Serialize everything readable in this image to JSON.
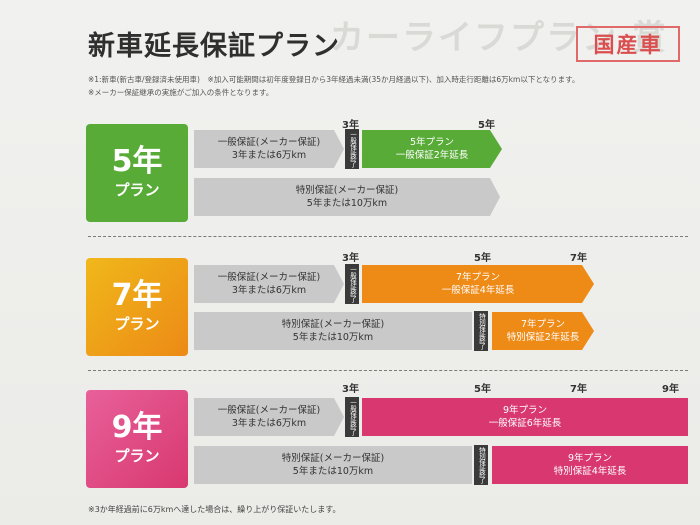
{
  "header": {
    "title": "新車延長保証プラン",
    "badge": "国産車",
    "ghost_text": "カーライフプラン 賞"
  },
  "notes": {
    "note1": "※1:新車(新古車/登録済未使用車)　※加入可能期間は初年度登録日から3年経過未満(35か月経過以下)、加入時走行距離は6万km以下となります。",
    "note2": "※メーカー保証継承の実施がご加入の条件となります。"
  },
  "colors": {
    "green": "#59ab38",
    "orange": "#ee8a16",
    "pink": "#d8386f",
    "gray": "#c9c9c9"
  },
  "plans": [
    {
      "num": "5年",
      "name": "プラン",
      "years": [
        "3年",
        "5年"
      ],
      "general": "一般保証(メーカー保証)\n3年または6万km",
      "special": "特別保証(メーカー保証)\n5年または10万km",
      "gap_general": "一般保証終了",
      "extension": "5年プラン\n一般保証2年延長"
    },
    {
      "num": "7年",
      "name": "プラン",
      "years": [
        "3年",
        "5年",
        "7年"
      ],
      "general": "一般保証(メーカー保証)\n3年または6万km",
      "special": "特別保証(メーカー保証)\n5年または10万km",
      "gap_general": "一般保証終了",
      "gap_special": "特別保証終了",
      "extension": "7年プラン\n一般保証4年延長",
      "extension_special": "7年プラン\n特別保証2年延長"
    },
    {
      "num": "9年",
      "name": "プラン",
      "years": [
        "3年",
        "5年",
        "7年",
        "9年"
      ],
      "general": "一般保証(メーカー保証)\n3年または6万km",
      "special": "特別保証(メーカー保証)\n5年または10万km",
      "gap_general": "一般保証終了",
      "gap_special": "特別保証終了",
      "extension": "9年プラン\n一般保証6年延長",
      "extension_special": "9年プラン\n特別保証4年延長"
    }
  ],
  "footer": "※3か年経過前に6万kmへ達した場合は、繰り上がり保証いたします。"
}
